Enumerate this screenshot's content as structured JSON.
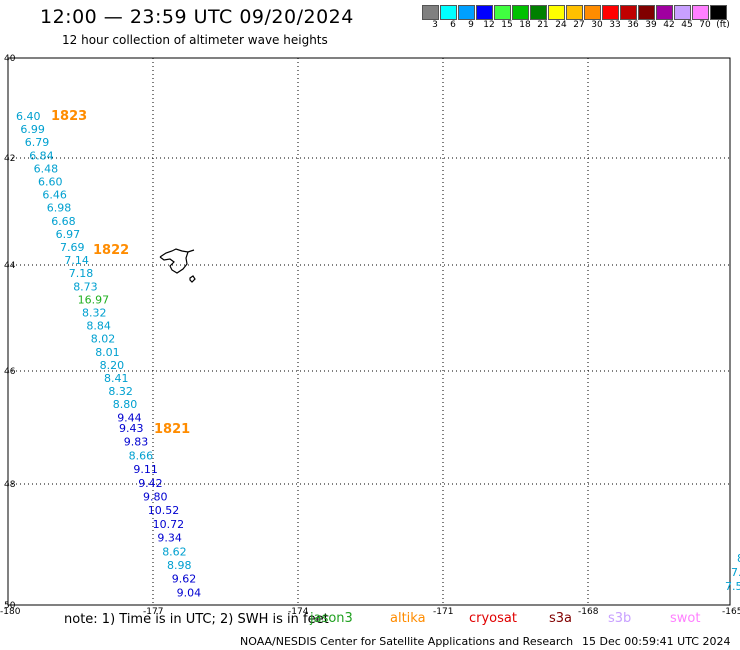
{
  "title": "12:00 — 23:59 UTC 09/20/2024",
  "subtitle": "12 hour collection of altimeter wave heights",
  "scale": {
    "colors": [
      "#808080",
      "#00ffff",
      "#00a0ff",
      "#0000ff",
      "#40ff40",
      "#00c000",
      "#008000",
      "#ffff00",
      "#ffc000",
      "#ff8c00",
      "#ff0000",
      "#c00000",
      "#800000",
      "#a000a0",
      "#c8a0ff",
      "#ff80ff",
      "#000000"
    ],
    "labels": [
      "3",
      "6",
      "9",
      "12",
      "15",
      "18",
      "21",
      "24",
      "27",
      "30",
      "33",
      "36",
      "39",
      "42",
      "45",
      "70",
      "(ft)"
    ]
  },
  "axes": {
    "lat_ticks": [
      "40",
      "42",
      "44",
      "46",
      "48",
      "50"
    ],
    "lon_ticks": [
      "-180",
      "-177",
      "-174",
      "-171",
      "-168",
      "-165"
    ]
  },
  "tracks": {
    "t1823": {
      "label": "1823",
      "readings": [
        {
          "v": "6.40",
          "c": "#00a0d0"
        },
        {
          "v": "6.99",
          "c": "#00a0d0"
        },
        {
          "v": "6.79",
          "c": "#00a0d0"
        },
        {
          "v": "6.84",
          "c": "#00a0d0"
        },
        {
          "v": "6.48",
          "c": "#00a0d0"
        },
        {
          "v": "6.60",
          "c": "#00a0d0"
        },
        {
          "v": "6.46",
          "c": "#00a0d0"
        },
        {
          "v": "6.98",
          "c": "#00a0d0"
        },
        {
          "v": "6.68",
          "c": "#00a0d0"
        },
        {
          "v": "6.97",
          "c": "#00a0d0"
        },
        {
          "v": "7.69",
          "c": "#00a0d0"
        },
        {
          "v": "7.14",
          "c": "#00a0d0"
        },
        {
          "v": "7.18",
          "c": "#00a0d0"
        },
        {
          "v": "8.73",
          "c": "#00a0d0"
        },
        {
          "v": "16.97",
          "c": "#20b020"
        },
        {
          "v": "8.32",
          "c": "#00a0d0"
        },
        {
          "v": "8.84",
          "c": "#00a0d0"
        },
        {
          "v": "8.02",
          "c": "#00a0d0"
        },
        {
          "v": "8.01",
          "c": "#00a0d0"
        },
        {
          "v": "8.20",
          "c": "#00a0d0"
        },
        {
          "v": "8.41",
          "c": "#00a0d0"
        },
        {
          "v": "8.32",
          "c": "#00a0d0"
        },
        {
          "v": "8.80",
          "c": "#00a0d0"
        },
        {
          "v": "9.44",
          "c": "#0000d0"
        }
      ]
    },
    "t1822": {
      "label": "1822"
    },
    "t1821": {
      "label": "1821",
      "readings": [
        {
          "v": "9.43",
          "c": "#0000d0"
        },
        {
          "v": "9.83",
          "c": "#0000d0"
        },
        {
          "v": "8.66",
          "c": "#00a0d0"
        },
        {
          "v": "9.11",
          "c": "#0000d0"
        },
        {
          "v": "9.42",
          "c": "#0000d0"
        },
        {
          "v": "9.80",
          "c": "#0000d0"
        },
        {
          "v": "10.52",
          "c": "#0000d0"
        },
        {
          "v": "10.72",
          "c": "#0000d0"
        },
        {
          "v": "9.34",
          "c": "#0000d0"
        },
        {
          "v": "8.62",
          "c": "#00a0d0"
        },
        {
          "v": "8.98",
          "c": "#00a0d0"
        },
        {
          "v": "9.62",
          "c": "#0000d0"
        },
        {
          "v": "9.04",
          "c": "#0000d0"
        }
      ]
    },
    "edge": {
      "readings": [
        "8",
        "7.",
        "7.5"
      ],
      "color": "#00a0d0"
    }
  },
  "note": "note:  1) Time is in UTC; 2) SWH is in feet",
  "satellites": [
    {
      "name": "jason3",
      "color": "#20a020"
    },
    {
      "name": "altika",
      "color": "#ff8c00"
    },
    {
      "name": "cryosat",
      "color": "#e00000"
    },
    {
      "name": "s3a",
      "color": "#800000"
    },
    {
      "name": "s3b",
      "color": "#c8a0ff"
    },
    {
      "name": "swot",
      "color": "#ff80ff"
    }
  ],
  "footer": {
    "credit": "NOAA/NESDIS Center for Satellite Applications and Research",
    "timestamp": "15 Dec 00:59:41 UTC 2024"
  }
}
